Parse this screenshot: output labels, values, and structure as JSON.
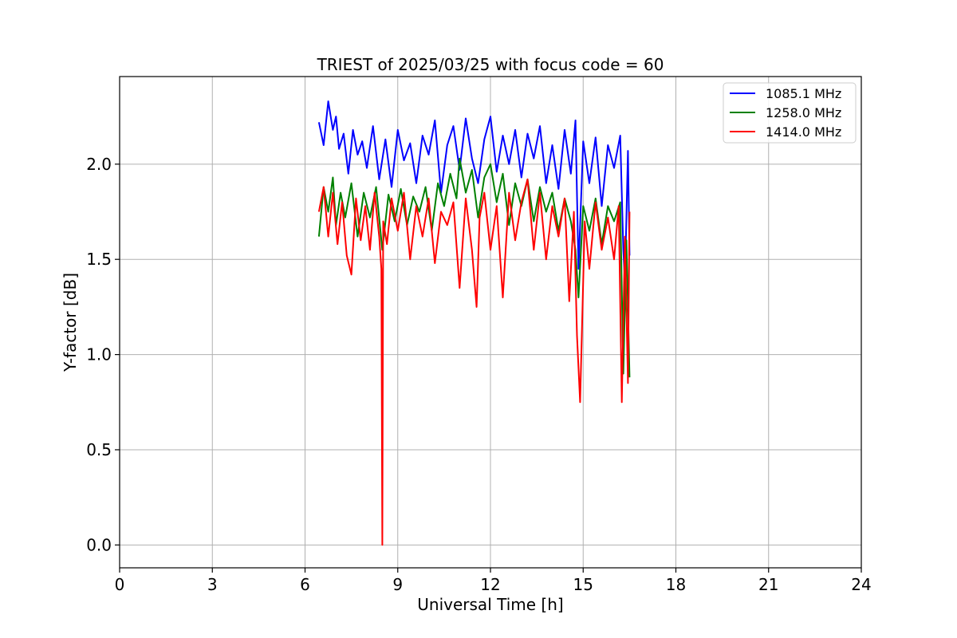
{
  "chart_data": {
    "type": "line",
    "title": "TRIEST of 2025/03/25 with focus code = 60",
    "xlabel": "Universal Time [h]",
    "ylabel": "Y-factor [dB]",
    "xlim": [
      0,
      24
    ],
    "ylim": [
      -0.12,
      2.46
    ],
    "xticks": [
      0,
      3,
      6,
      9,
      12,
      15,
      18,
      21,
      24
    ],
    "xtick_labels": [
      "0",
      "3",
      "6",
      "9",
      "12",
      "15",
      "18",
      "21",
      "24"
    ],
    "yticks": [
      0.0,
      0.5,
      1.0,
      1.5,
      2.0
    ],
    "ytick_labels": [
      "0.0",
      "0.5",
      "1.0",
      "1.5",
      "2.0"
    ],
    "grid": true,
    "legend_position": "top-right",
    "series": [
      {
        "name": "1085.1 MHz",
        "color": "#0000ff",
        "x": [
          6.45,
          6.6,
          6.75,
          6.9,
          7.0,
          7.1,
          7.25,
          7.4,
          7.55,
          7.7,
          7.85,
          8.0,
          8.2,
          8.4,
          8.6,
          8.8,
          9.0,
          9.2,
          9.4,
          9.6,
          9.8,
          10.0,
          10.2,
          10.4,
          10.6,
          10.8,
          11.0,
          11.2,
          11.4,
          11.6,
          11.8,
          12.0,
          12.2,
          12.4,
          12.6,
          12.8,
          13.0,
          13.2,
          13.4,
          13.6,
          13.8,
          14.0,
          14.2,
          14.4,
          14.6,
          14.75,
          14.85,
          15.0,
          15.2,
          15.4,
          15.6,
          15.8,
          16.0,
          16.2,
          16.3,
          16.35,
          16.45,
          16.5
        ],
        "y": [
          2.22,
          2.1,
          2.33,
          2.18,
          2.25,
          2.08,
          2.16,
          1.95,
          2.18,
          2.05,
          2.12,
          1.98,
          2.2,
          1.92,
          2.13,
          1.88,
          2.18,
          2.02,
          2.11,
          1.9,
          2.15,
          2.05,
          2.23,
          1.85,
          2.1,
          2.2,
          1.97,
          2.24,
          2.03,
          1.9,
          2.13,
          2.25,
          1.96,
          2.15,
          2.0,
          2.18,
          1.93,
          2.16,
          2.03,
          2.2,
          1.9,
          2.1,
          1.87,
          2.18,
          1.95,
          2.23,
          1.45,
          2.12,
          1.9,
          2.14,
          1.78,
          2.1,
          1.98,
          2.15,
          1.55,
          1.38,
          2.07,
          1.52
        ]
      },
      {
        "name": "1258.0 MHz",
        "color": "#008000",
        "x": [
          6.45,
          6.6,
          6.75,
          6.9,
          7.0,
          7.15,
          7.3,
          7.5,
          7.7,
          7.9,
          8.1,
          8.3,
          8.5,
          8.7,
          8.9,
          9.1,
          9.3,
          9.5,
          9.7,
          9.9,
          10.1,
          10.3,
          10.5,
          10.7,
          10.9,
          11.0,
          11.2,
          11.4,
          11.6,
          11.8,
          12.0,
          12.2,
          12.4,
          12.6,
          12.8,
          13.0,
          13.2,
          13.4,
          13.6,
          13.8,
          14.0,
          14.2,
          14.4,
          14.6,
          14.75,
          14.85,
          15.0,
          15.2,
          15.4,
          15.6,
          15.8,
          16.0,
          16.2,
          16.3,
          16.4,
          16.5
        ],
        "y": [
          1.62,
          1.88,
          1.75,
          1.93,
          1.68,
          1.85,
          1.72,
          1.9,
          1.62,
          1.85,
          1.72,
          1.88,
          1.55,
          1.84,
          1.7,
          1.87,
          1.68,
          1.83,
          1.75,
          1.88,
          1.65,
          1.9,
          1.78,
          1.95,
          1.82,
          2.03,
          1.85,
          1.97,
          1.72,
          1.93,
          2.0,
          1.8,
          1.95,
          1.68,
          1.9,
          1.78,
          1.92,
          1.7,
          1.88,
          1.75,
          1.85,
          1.65,
          1.82,
          1.7,
          1.55,
          1.3,
          1.78,
          1.65,
          1.82,
          1.58,
          1.78,
          1.7,
          1.8,
          0.9,
          1.6,
          0.88
        ]
      },
      {
        "name": "1414.0 MHz",
        "color": "#ff0000",
        "x": [
          6.45,
          6.6,
          6.75,
          6.9,
          7.05,
          7.2,
          7.35,
          7.5,
          7.65,
          7.8,
          7.95,
          8.1,
          8.25,
          8.4,
          8.47,
          8.5,
          8.53,
          8.65,
          8.8,
          9.0,
          9.2,
          9.4,
          9.6,
          9.8,
          10.0,
          10.2,
          10.4,
          10.6,
          10.8,
          11.0,
          11.2,
          11.4,
          11.55,
          11.65,
          11.8,
          12.0,
          12.2,
          12.4,
          12.6,
          12.8,
          13.0,
          13.2,
          13.4,
          13.6,
          13.8,
          14.0,
          14.2,
          14.4,
          14.55,
          14.7,
          14.8,
          14.9,
          15.05,
          15.2,
          15.4,
          15.6,
          15.8,
          16.0,
          16.15,
          16.25,
          16.35,
          16.45,
          16.5
        ],
        "y": [
          1.75,
          1.88,
          1.62,
          1.85,
          1.58,
          1.8,
          1.52,
          1.42,
          1.82,
          1.6,
          1.78,
          1.55,
          1.85,
          1.62,
          1.45,
          0.0,
          1.7,
          1.58,
          1.82,
          1.65,
          1.85,
          1.5,
          1.78,
          1.62,
          1.82,
          1.48,
          1.75,
          1.68,
          1.8,
          1.35,
          1.82,
          1.55,
          1.25,
          1.72,
          1.85,
          1.55,
          1.78,
          1.3,
          1.85,
          1.6,
          1.8,
          1.92,
          1.55,
          1.85,
          1.5,
          1.78,
          1.62,
          1.82,
          1.28,
          1.75,
          1.1,
          0.75,
          1.7,
          1.45,
          1.8,
          1.55,
          1.72,
          1.5,
          1.78,
          0.75,
          1.62,
          0.85,
          1.75
        ]
      }
    ]
  }
}
